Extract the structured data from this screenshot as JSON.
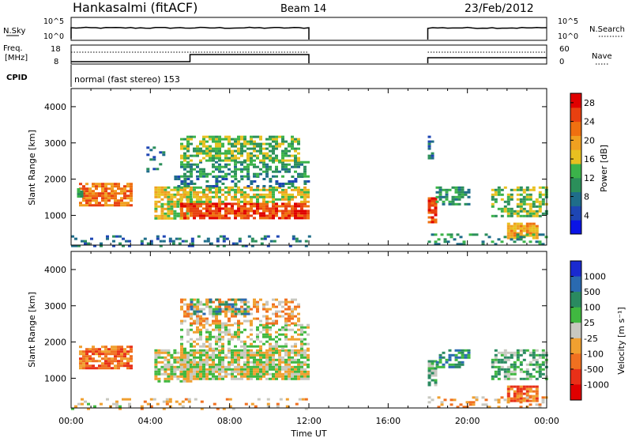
{
  "header": {
    "station": "Hankasalmi (fitACF)",
    "beam": "Beam 14",
    "date": "23/Feb/2012"
  },
  "params": {
    "nsky_label": "N.Sky",
    "nsearch_label": "N.Search",
    "nsky_ticks": [
      "10^5",
      "10^0"
    ],
    "freq_label_1": "Freq.",
    "freq_label_2": "[MHz]",
    "freq_ticks": [
      "18",
      "8"
    ],
    "nave_label": "Nave",
    "nave_ticks": [
      "60",
      "0"
    ],
    "cpid_label": "CPID",
    "cpid_text": "normal (fast stereo) 153"
  },
  "chart_data": [
    {
      "type": "heatmap",
      "name": "power",
      "xlabel": "",
      "ylabel": "Slant Range [km]",
      "x_range_hours": [
        0,
        24
      ],
      "x_ticks": [
        "00:00",
        "04:00",
        "08:00",
        "12:00",
        "16:00",
        "20:00",
        "00:00"
      ],
      "y_range_km": [
        180,
        4500
      ],
      "y_ticks": [
        1000,
        2000,
        3000,
        4000
      ],
      "data_gap_hours": [
        12.0,
        18.0
      ],
      "colorbar": {
        "label": "Power [dB]",
        "ticks": [
          4,
          8,
          12,
          16,
          20,
          24,
          28
        ],
        "colors": [
          "#0a14e6",
          "#1e46b4",
          "#1f6d8a",
          "#2b8f5a",
          "#3bb34a",
          "#e8c020",
          "#f0a020",
          "#ef7010",
          "#e84010",
          "#e00000"
        ]
      },
      "regions": [
        {
          "t": [
            0.0,
            3.2
          ],
          "r": [
            180,
            450
          ],
          "v": 6,
          "d": 0.3
        },
        {
          "t": [
            0.4,
            3.0
          ],
          "r": [
            1250,
            1900
          ],
          "v": 22,
          "d": 0.8
        },
        {
          "t": [
            0.3,
            0.6
          ],
          "r": [
            1500,
            1750
          ],
          "v": 10,
          "d": 0.6
        },
        {
          "t": [
            3.8,
            4.6
          ],
          "r": [
            2200,
            2900
          ],
          "v": 8,
          "d": 0.25
        },
        {
          "t": [
            4.2,
            6.0
          ],
          "r": [
            900,
            1800
          ],
          "v": 18,
          "d": 0.75
        },
        {
          "t": [
            5.5,
            12.0
          ],
          "r": [
            950,
            1350
          ],
          "v": 27,
          "d": 0.85
        },
        {
          "t": [
            5.5,
            12.0
          ],
          "r": [
            1350,
            1800
          ],
          "v": 15,
          "d": 0.7
        },
        {
          "t": [
            5.2,
            12.0
          ],
          "r": [
            1800,
            2100
          ],
          "v": 8,
          "d": 0.35
        },
        {
          "t": [
            5.5,
            12.0
          ],
          "r": [
            2100,
            2500
          ],
          "v": 10,
          "d": 0.55
        },
        {
          "t": [
            5.5,
            11.5
          ],
          "r": [
            2500,
            3200
          ],
          "v": 14,
          "d": 0.65
        },
        {
          "t": [
            3.5,
            12.0
          ],
          "r": [
            180,
            450
          ],
          "v": 6,
          "d": 0.25
        },
        {
          "t": [
            18.0,
            18.4
          ],
          "r": [
            800,
            1500
          ],
          "v": 27,
          "d": 0.9
        },
        {
          "t": [
            18.4,
            20.0
          ],
          "r": [
            1300,
            1800
          ],
          "v": 10,
          "d": 0.55
        },
        {
          "t": [
            18.0,
            18.3
          ],
          "r": [
            2500,
            3200
          ],
          "v": 7,
          "d": 0.35
        },
        {
          "t": [
            21.2,
            24.0
          ],
          "r": [
            1000,
            1800
          ],
          "v": 14,
          "d": 0.6
        },
        {
          "t": [
            22.0,
            23.5
          ],
          "r": [
            400,
            800
          ],
          "v": 20,
          "d": 0.8
        },
        {
          "t": [
            18.0,
            24.0
          ],
          "r": [
            180,
            500
          ],
          "v": 10,
          "d": 0.3
        }
      ]
    },
    {
      "type": "heatmap",
      "name": "velocity",
      "xlabel": "Time UT",
      "ylabel": "Slant Range [km]",
      "x_range_hours": [
        0,
        24
      ],
      "x_ticks": [
        "00:00",
        "04:00",
        "08:00",
        "12:00",
        "16:00",
        "20:00",
        "00:00"
      ],
      "y_range_km": [
        180,
        4500
      ],
      "y_ticks": [
        1000,
        2000,
        3000,
        4000
      ],
      "data_gap_hours": [
        12.0,
        18.0
      ],
      "colorbar": {
        "label": "Velocity [m s⁻¹]",
        "ticks": [
          "1000",
          "500",
          "100",
          "25",
          "-25",
          "-100",
          "-500",
          "-1000"
        ],
        "colors": [
          "#1a2ad0",
          "#2a6ab0",
          "#2a8a60",
          "#40b840",
          "#c8c8c0",
          "#f0a030",
          "#f07020",
          "#e83018",
          "#e00000"
        ]
      },
      "regions": [
        {
          "t": [
            0.0,
            3.2
          ],
          "r": [
            180,
            450
          ],
          "v": 4,
          "d": 0.2
        },
        {
          "t": [
            0.4,
            3.0
          ],
          "r": [
            1250,
            1900
          ],
          "v": 6,
          "d": 0.8
        },
        {
          "t": [
            4.2,
            6.0
          ],
          "r": [
            900,
            1800
          ],
          "v": 4,
          "d": 0.7
        },
        {
          "t": [
            5.5,
            12.0
          ],
          "r": [
            950,
            1800
          ],
          "v": 4,
          "d": 0.85
        },
        {
          "t": [
            5.5,
            12.0
          ],
          "r": [
            1800,
            2500
          ],
          "v": 4,
          "d": 0.45
        },
        {
          "t": [
            5.5,
            11.5
          ],
          "r": [
            2500,
            3200
          ],
          "v": 5,
          "d": 0.55
        },
        {
          "t": [
            6.0,
            9.0
          ],
          "r": [
            2800,
            3200
          ],
          "v": 2,
          "d": 0.35
        },
        {
          "t": [
            3.5,
            12.0
          ],
          "r": [
            180,
            450
          ],
          "v": 5,
          "d": 0.2
        },
        {
          "t": [
            18.0,
            18.4
          ],
          "r": [
            800,
            1500
          ],
          "v": 3,
          "d": 0.8
        },
        {
          "t": [
            18.4,
            20.0
          ],
          "r": [
            1300,
            1800
          ],
          "v": 2,
          "d": 0.5
        },
        {
          "t": [
            21.2,
            24.0
          ],
          "r": [
            1000,
            1800
          ],
          "v": 3,
          "d": 0.55
        },
        {
          "t": [
            22.0,
            23.5
          ],
          "r": [
            400,
            800
          ],
          "v": 6,
          "d": 0.85
        },
        {
          "t": [
            18.0,
            24.0
          ],
          "r": [
            180,
            500
          ],
          "v": 5,
          "d": 0.25
        }
      ]
    }
  ]
}
